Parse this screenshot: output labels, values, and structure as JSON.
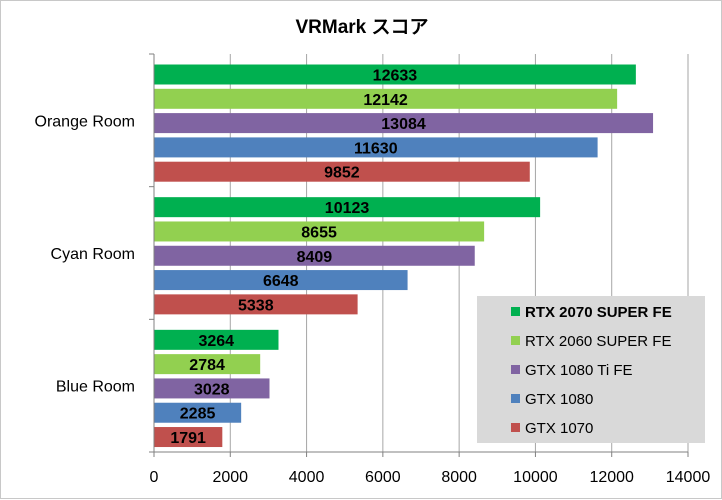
{
  "chart_data": {
    "type": "bar",
    "orientation": "horizontal",
    "title": "VRMark スコア",
    "xlabel": "",
    "ylabel": "",
    "xlim": [
      0,
      14000
    ],
    "ticks": [
      0,
      2000,
      4000,
      6000,
      8000,
      10000,
      12000,
      14000
    ],
    "categories": [
      "Orange Room",
      "Cyan Room",
      "Blue Room"
    ],
    "series": [
      {
        "name": "RTX 2070 SUPER FE",
        "color": "#00b050",
        "values": [
          12633,
          10123,
          3264
        ]
      },
      {
        "name": "RTX 2060 SUPER FE",
        "color": "#92d050",
        "values": [
          12142,
          8655,
          2784
        ]
      },
      {
        "name": "GTX 1080 Ti FE",
        "color": "#8064a2",
        "values": [
          13084,
          8409,
          3028
        ]
      },
      {
        "name": "GTX 1080",
        "color": "#4f81bd",
        "values": [
          11630,
          6648,
          2285
        ]
      },
      {
        "name": "GTX 1070",
        "color": "#c0504d",
        "values": [
          9852,
          5338,
          1791
        ]
      }
    ],
    "grid": true,
    "legend_position": "bottom-right",
    "legend_bold": [
      "RTX 2070 SUPER FE"
    ]
  }
}
